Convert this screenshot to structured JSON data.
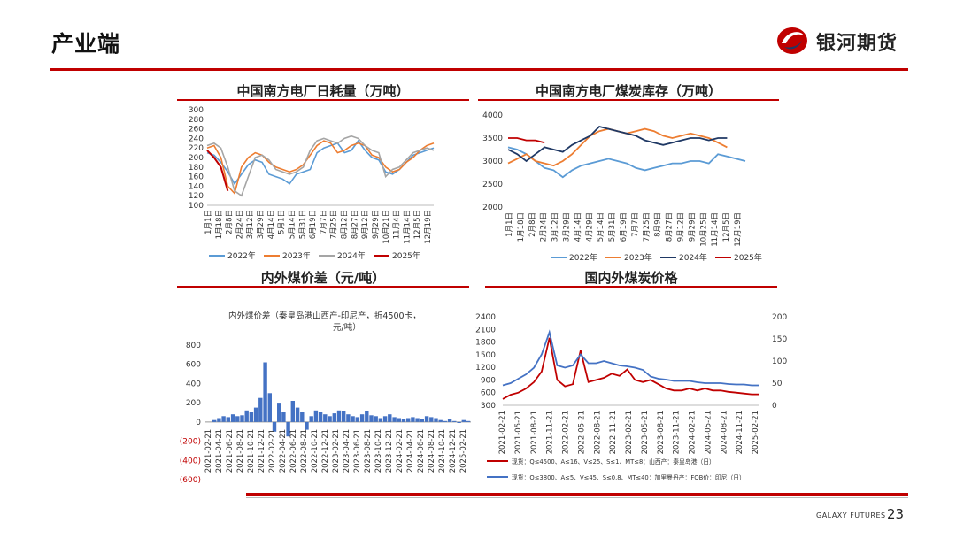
{
  "header": {
    "title": "产业端",
    "brand": "银河期货"
  },
  "footer": {
    "brand": "GALAXY FUTURES",
    "page_number": "23"
  },
  "colors": {
    "accent": "#c00000",
    "s2022": "#5b9bd5",
    "s2023": "#ed7d31",
    "s2024": "#1f3864",
    "s2025": "#c00000",
    "gray": "#a5a5a5"
  },
  "chart_data": [
    {
      "id": "consumption",
      "type": "line",
      "title": "中国南方电厂日耗量（万吨）",
      "ylim": [
        100,
        300
      ],
      "yticks": [
        "300",
        "280",
        "260",
        "240",
        "220",
        "200",
        "180",
        "160",
        "140",
        "120",
        "100"
      ],
      "xticks": [
        "1月1日",
        "1月18日",
        "2月8日",
        "2月24日",
        "3月12日",
        "3月29日",
        "4月14日",
        "5月1日",
        "5月14日",
        "5月31日",
        "6月19日",
        "7月7日",
        "7月25日",
        "8月12日",
        "8月27日",
        "9月12日",
        "9月29日",
        "10月21日",
        "11月4日",
        "11月14日",
        "12月5日",
        "12月19日"
      ],
      "series": [
        {
          "name": "2022年",
          "color": "#5b9bd5",
          "values": [
            210,
            205,
            190,
            170,
            145,
            165,
            185,
            195,
            190,
            165,
            160,
            155,
            145,
            165,
            170,
            175,
            210,
            220,
            225,
            230,
            210,
            215,
            235,
            215,
            200,
            195,
            170,
            165,
            175,
            190,
            205,
            210,
            215,
            220
          ]
        },
        {
          "name": "2023年",
          "color": "#ed7d31",
          "values": [
            220,
            225,
            200,
            140,
            125,
            180,
            200,
            210,
            205,
            190,
            180,
            175,
            170,
            175,
            185,
            205,
            225,
            235,
            230,
            210,
            215,
            225,
            230,
            225,
            205,
            200,
            180,
            170,
            175,
            190,
            200,
            215,
            225,
            230
          ]
        },
        {
          "name": "2024年",
          "color": "#a5a5a5",
          "values": [
            225,
            230,
            220,
            180,
            130,
            120,
            160,
            200,
            205,
            195,
            175,
            170,
            165,
            170,
            180,
            215,
            235,
            240,
            235,
            230,
            240,
            245,
            240,
            225,
            215,
            210,
            160,
            175,
            180,
            195,
            210,
            215,
            220,
            215
          ]
        },
        {
          "name": "2025年",
          "color": "#c00000",
          "values": [
            215,
            200,
            180,
            130
          ]
        }
      ]
    },
    {
      "id": "inventory",
      "type": "line",
      "title": "中国南方电厂煤炭库存（万吨）",
      "ylim": [
        2000,
        4000
      ],
      "yticks": [
        "4000",
        "3500",
        "3000",
        "2500",
        "2000"
      ],
      "xticks": [
        "1月1日",
        "1月18日",
        "2月8日",
        "2月24日",
        "3月12日",
        "3月29日",
        "4月14日",
        "4月29日",
        "5月14日",
        "5月31日",
        "6月19日",
        "7月7日",
        "7月25日",
        "8月9日",
        "8月27日",
        "9月12日",
        "9月29日",
        "10月25日",
        "11月14日",
        "12月5日",
        "12月19日"
      ],
      "series": [
        {
          "name": "2022年",
          "color": "#5b9bd5",
          "values": [
            3300,
            3250,
            3150,
            3000,
            2850,
            2800,
            2650,
            2800,
            2900,
            2950,
            3000,
            3050,
            3000,
            2950,
            2850,
            2800,
            2850,
            2900,
            2950,
            2950,
            3000,
            3000,
            2950,
            3150,
            3100,
            3050,
            3000
          ]
        },
        {
          "name": "2023年",
          "color": "#ed7d31",
          "values": [
            2950,
            3050,
            3150,
            3000,
            2950,
            2900,
            3000,
            3150,
            3350,
            3550,
            3650,
            3700,
            3650,
            3600,
            3650,
            3700,
            3650,
            3550,
            3500,
            3550,
            3600,
            3550,
            3500,
            3400,
            3300
          ]
        },
        {
          "name": "2024年",
          "color": "#1f3864",
          "values": [
            3250,
            3150,
            3000,
            3150,
            3300,
            3250,
            3200,
            3350,
            3450,
            3550,
            3750,
            3700,
            3650,
            3600,
            3550,
            3450,
            3400,
            3350,
            3400,
            3450,
            3500,
            3500,
            3450,
            3500,
            3500
          ]
        },
        {
          "name": "2025年",
          "color": "#c00000",
          "values": [
            3500,
            3500,
            3450,
            3450,
            3400
          ]
        }
      ]
    },
    {
      "id": "spread",
      "type": "bar",
      "title": "内外煤价差（元/吨）",
      "subtitle": "内外煤价差（秦皇岛港山西产-印尼产，折4500卡，元/吨）",
      "ylim": [
        -600,
        800
      ],
      "yticks": [
        "800",
        "600",
        "400",
        "200",
        "0",
        "(200)",
        "(400)",
        "(600)"
      ],
      "xticks": [
        "2021-02-21",
        "2021-04-21",
        "2021-06-21",
        "2021-08-21",
        "2021-10-21",
        "2021-12-21",
        "2022-02-21",
        "2022-04-21",
        "2022-06-21",
        "2022-08-21",
        "2022-10-21",
        "2022-12-21",
        "2023-02-21",
        "2023-04-21",
        "2023-06-21",
        "2023-08-21",
        "2023-10-21",
        "2023-12-21",
        "2024-02-21",
        "2024-04-21",
        "2024-06-21",
        "2024-08-21",
        "2024-10-21",
        "2024-12-21",
        "2025-02-21"
      ],
      "values": [
        20,
        40,
        60,
        50,
        80,
        60,
        70,
        120,
        100,
        150,
        250,
        620,
        300,
        -100,
        200,
        100,
        -150,
        220,
        150,
        100,
        -80,
        60,
        120,
        100,
        80,
        60,
        90,
        120,
        110,
        80,
        60,
        50,
        80,
        110,
        70,
        60,
        40,
        60,
        80,
        50,
        40,
        30,
        40,
        50,
        40,
        30,
        60,
        50,
        40,
        20,
        10,
        30,
        10,
        -10,
        20,
        10
      ]
    },
    {
      "id": "prices",
      "type": "line",
      "title": "国内外煤炭价格",
      "ylim_left": [
        300,
        2400
      ],
      "ylim_right": [
        0,
        200
      ],
      "yticks_left": [
        "2400",
        "2100",
        "1800",
        "1500",
        "1200",
        "900",
        "600",
        "300"
      ],
      "yticks_right": [
        "200",
        "150",
        "100",
        "50",
        "0"
      ],
      "xticks": [
        "2021-02-21",
        "2021-05-21",
        "2021-08-21",
        "2021-11-21",
        "2022-02-21",
        "2022-05-21",
        "2022-08-21",
        "2022-11-21",
        "2023-02-21",
        "2023-05-21",
        "2023-08-21",
        "2023-11-21",
        "2024-02-21",
        "2024-05-21",
        "2024-08-21",
        "2024-11-21",
        "2025-02-21"
      ],
      "series": [
        {
          "name": "现货：Q≤4500、A≤16、V≤25、S≤1、MT≤8：山西产：秦皇岛港（日）",
          "axis": "left",
          "color": "#c00000",
          "values": [
            450,
            550,
            600,
            700,
            850,
            1100,
            1900,
            900,
            750,
            800,
            1600,
            850,
            900,
            950,
            1050,
            1000,
            1150,
            900,
            850,
            900,
            800,
            700,
            650,
            650,
            700,
            650,
            700,
            650,
            650,
            620,
            600,
            580,
            560,
            560
          ]
        },
        {
          "name": "现货：Q≤3800、A≤5、V≤45、S≤0.8、MT≤40：加里曼丹产：FOB价：印尼（日）",
          "axis": "right",
          "color": "#4472c4",
          "values": [
            45,
            50,
            60,
            70,
            85,
            115,
            165,
            90,
            85,
            90,
            115,
            95,
            95,
            100,
            95,
            90,
            88,
            85,
            80,
            65,
            60,
            58,
            55,
            55,
            55,
            52,
            50,
            50,
            50,
            48,
            47,
            47,
            45,
            45
          ]
        }
      ]
    }
  ]
}
